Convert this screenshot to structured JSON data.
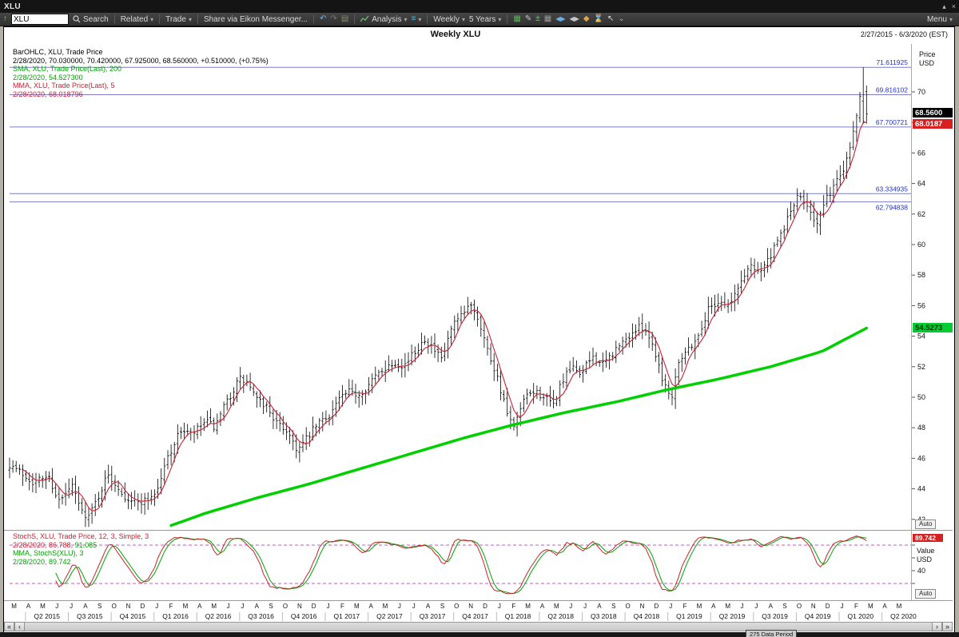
{
  "titlebar": {
    "title": "XLU",
    "minimize_glyph": "▴",
    "close_glyph": "×"
  },
  "toolbar": {
    "up_glyph": "↑",
    "search_value": "XLU",
    "search_label": "Search",
    "related_label": "Related",
    "trade_label": "Trade",
    "share_label": "Share via Eikon Messenger...",
    "undo_glyph": "↶",
    "redo_glyph": "↷",
    "folder_glyph": "▤",
    "analysis_label": "Analysis",
    "layers_glyph": "≡",
    "interval_value": "Weekly",
    "range_value": "5 Years",
    "edit_glyph": "✎",
    "add_remove_glyph": "±",
    "grid_glyph": "▦",
    "prev_next_glyph": "◀▶",
    "diamond_glyph": "◆",
    "hourglass_glyph": "⌛",
    "cursor_glyph": "↖",
    "collapse_glyph": "⌄",
    "caret_glyph": "▾",
    "menu_label": "Menu"
  },
  "chart_header": {
    "title": "Weekly XLU",
    "date_range": "2/27/2015 - 6/3/2020 (EST)"
  },
  "legend_main": {
    "line1": "BarOHLC, XLU, Trade Price",
    "line2": "2/28/2020, 70.030000, 70.420000, 67.925000, 68.560000, +0.510000, (+0.75%)",
    "line3": "SMA, XLU, Trade Price(Last),  200",
    "line4": "2/28/2020, 54.527300",
    "line5": "MMA, XLU, Trade Price(Last),  5",
    "line6": "2/28/2020, 68.018796"
  },
  "legend_stoch": {
    "line1": "StochS, XLU, Trade Price,  12, 3, Simple, 3",
    "line2_red": "2/28/2020, 86.788,",
    "line2_green": "91.085",
    "line3": "MMA, StochS(XLU),  3",
    "line4": "2/28/2020, 89.742"
  },
  "axis": {
    "price_label": "Price",
    "price_unit": "USD",
    "value_label": "Value",
    "value_unit": "USD",
    "auto_label": "Auto",
    "badge_last": "68.5600",
    "badge_mma": "68.0187",
    "badge_sma": "54.5273",
    "badge_stoch": "89.742",
    "stoch_tick": "40"
  },
  "scrollbar": {
    "far_left": "«",
    "left": "‹",
    "right": "›",
    "far_right": "»",
    "data_period": "275 Data Period"
  },
  "chart_data": {
    "type": "ohlc+line",
    "symbol": "XLU",
    "study": "Trade Price",
    "interval": "Weekly",
    "range": "5 Years",
    "bar_count": 261,
    "last_bar": {
      "date": "2/28/2020",
      "open": 70.03,
      "high": 70.42,
      "low": 67.925,
      "close": 68.56,
      "change": 0.51,
      "change_pct": "+0.75%"
    },
    "mma5_last": 68.018796,
    "sma200_last": 54.5273,
    "stoch_last": {
      "k": 86.788,
      "d": 91.085,
      "mma": 89.742
    },
    "pivot_levels": [
      71.611925,
      69.816102,
      67.700721,
      63.334935,
      62.794838
    ],
    "price_axis": {
      "ticks": [
        42,
        44,
        46,
        48,
        50,
        52,
        54,
        56,
        58,
        60,
        62,
        64,
        66,
        68,
        70
      ],
      "ylim": [
        41.5,
        73.2
      ]
    },
    "stoch_axis": {
      "ticks": [
        80,
        60,
        40,
        20
      ],
      "labeled_tick": 40,
      "levels": [
        80,
        20
      ],
      "ylim": [
        0,
        100
      ]
    },
    "x_axis": {
      "start_decimal_year": 2015.157,
      "end_decimal_year": 2020.42,
      "data_end_decimal_year": 2020.16,
      "month_letters": "MAMJJASONDJFMAMJJASONDJFMAMJJASONDJFMAMJJASONDJFMAMJJASONDJFMAM",
      "quarter_labels": [
        "Q2 2015",
        "Q3 2015",
        "Q4 2015",
        "Q1 2016",
        "Q2 2016",
        "Q3 2016",
        "Q4 2016",
        "Q1 2017",
        "Q2 2017",
        "Q3 2017",
        "Q4 2017",
        "Q1 2018",
        "Q2 2018",
        "Q3 2018",
        "Q4 2018",
        "Q1 2019",
        "Q2 2019",
        "Q3 2019",
        "Q4 2019",
        "Q1 2020",
        "Q2 2020"
      ]
    },
    "close_anchors": [
      [
        2015.16,
        45.6
      ],
      [
        2015.22,
        45.1
      ],
      [
        2015.3,
        44.4
      ],
      [
        2015.38,
        44.9
      ],
      [
        2015.45,
        43.1
      ],
      [
        2015.52,
        44.2
      ],
      [
        2015.58,
        42.5
      ],
      [
        2015.62,
        42.2
      ],
      [
        2015.67,
        43.4
      ],
      [
        2015.73,
        44.9
      ],
      [
        2015.78,
        44.3
      ],
      [
        2015.83,
        43.5
      ],
      [
        2015.9,
        43.1
      ],
      [
        2015.96,
        43.3
      ],
      [
        2016.02,
        43.9
      ],
      [
        2016.08,
        46.1
      ],
      [
        2016.16,
        47.9
      ],
      [
        2016.22,
        47.5
      ],
      [
        2016.3,
        48.4
      ],
      [
        2016.36,
        48.0
      ],
      [
        2016.42,
        49.6
      ],
      [
        2016.5,
        51.2
      ],
      [
        2016.55,
        50.9
      ],
      [
        2016.6,
        49.8
      ],
      [
        2016.66,
        49.4
      ],
      [
        2016.72,
        48.2
      ],
      [
        2016.78,
        47.8
      ],
      [
        2016.84,
        46.5
      ],
      [
        2016.9,
        47.4
      ],
      [
        2016.96,
        48.3
      ],
      [
        2017.02,
        48.8
      ],
      [
        2017.08,
        49.9
      ],
      [
        2017.14,
        50.3
      ],
      [
        2017.2,
        50.2
      ],
      [
        2017.26,
        50.9
      ],
      [
        2017.33,
        51.8
      ],
      [
        2017.4,
        52.3
      ],
      [
        2017.46,
        52.1
      ],
      [
        2017.52,
        52.9
      ],
      [
        2017.58,
        53.9
      ],
      [
        2017.64,
        53.0
      ],
      [
        2017.68,
        52.4
      ],
      [
        2017.74,
        54.6
      ],
      [
        2017.8,
        55.3
      ],
      [
        2017.85,
        56.2
      ],
      [
        2017.9,
        55.0
      ],
      [
        2017.95,
        53.0
      ],
      [
        2018.0,
        51.5
      ],
      [
        2018.06,
        49.0
      ],
      [
        2018.1,
        47.9
      ],
      [
        2018.16,
        49.8
      ],
      [
        2018.22,
        50.4
      ],
      [
        2018.28,
        50.0
      ],
      [
        2018.33,
        49.4
      ],
      [
        2018.38,
        51.0
      ],
      [
        2018.44,
        51.9
      ],
      [
        2018.5,
        51.6
      ],
      [
        2018.56,
        52.7
      ],
      [
        2018.62,
        52.1
      ],
      [
        2018.68,
        52.9
      ],
      [
        2018.74,
        53.6
      ],
      [
        2018.8,
        54.3
      ],
      [
        2018.86,
        54.7
      ],
      [
        2018.92,
        53.2
      ],
      [
        2018.97,
        51.2
      ],
      [
        2019.02,
        49.9
      ],
      [
        2019.06,
        52.4
      ],
      [
        2019.12,
        53.2
      ],
      [
        2019.18,
        54.0
      ],
      [
        2019.24,
        55.9
      ],
      [
        2019.3,
        56.3
      ],
      [
        2019.36,
        56.0
      ],
      [
        2019.42,
        57.4
      ],
      [
        2019.48,
        58.7
      ],
      [
        2019.54,
        58.3
      ],
      [
        2019.6,
        59.2
      ],
      [
        2019.66,
        60.6
      ],
      [
        2019.72,
        62.3
      ],
      [
        2019.76,
        63.1
      ],
      [
        2019.82,
        62.6
      ],
      [
        2019.87,
        61.3
      ],
      [
        2019.92,
        62.8
      ],
      [
        2019.97,
        63.9
      ],
      [
        2020.02,
        64.8
      ],
      [
        2020.06,
        66.3
      ],
      [
        2020.1,
        68.3
      ],
      [
        2020.13,
        70.0
      ],
      [
        2020.16,
        68.56
      ]
    ],
    "sma200_anchors": [
      [
        2016.1,
        41.6
      ],
      [
        2016.3,
        42.4
      ],
      [
        2016.6,
        43.4
      ],
      [
        2016.9,
        44.3
      ],
      [
        2017.2,
        45.3
      ],
      [
        2017.5,
        46.3
      ],
      [
        2017.8,
        47.3
      ],
      [
        2018.1,
        48.2
      ],
      [
        2018.4,
        49.0
      ],
      [
        2018.7,
        49.7
      ],
      [
        2019.0,
        50.5
      ],
      [
        2019.3,
        51.2
      ],
      [
        2019.6,
        52.0
      ],
      [
        2019.9,
        53.0
      ],
      [
        2020.16,
        54.5273
      ]
    ],
    "last_bars": [
      [
        68.3,
        70.0,
        68.0,
        69.7
      ],
      [
        69.4,
        71.611925,
        67.9,
        68.05
      ],
      [
        70.03,
        70.42,
        67.925,
        68.56
      ]
    ],
    "colors": {
      "bars": "#000000",
      "mma": "#cc2233",
      "sma200": "#00cf00",
      "pivot_line": "#7d7dc8",
      "pivot_text": "#2233bb",
      "stoch_k": "#cc2233",
      "stoch_d": "#00a400",
      "stoch_level": "#cc55cc",
      "badge_last_bg": "#000000",
      "badge_mma_bg": "#d92020",
      "badge_sma_bg": "#00cc33",
      "badge_stoch_bg": "#d92020"
    }
  }
}
